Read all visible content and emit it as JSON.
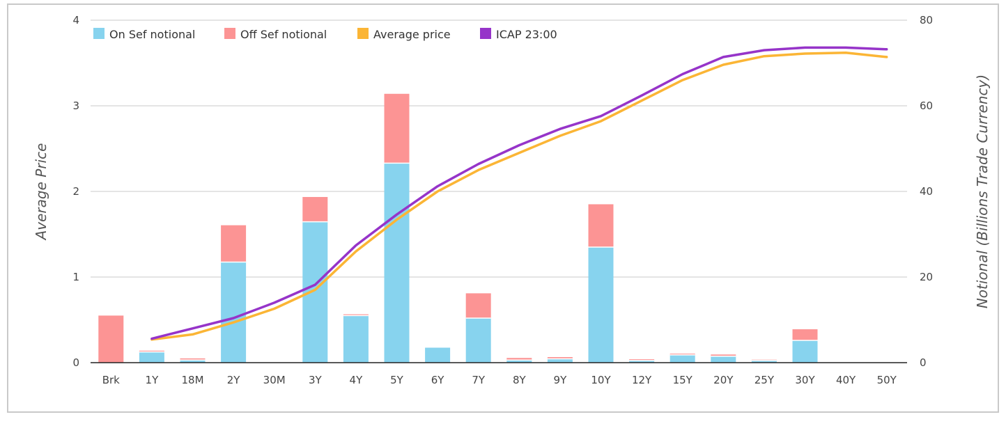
{
  "chart_data": {
    "type": "bar",
    "categories": [
      "Brk",
      "1Y",
      "18M",
      "2Y",
      "30M",
      "3Y",
      "4Y",
      "5Y",
      "6Y",
      "7Y",
      "8Y",
      "9Y",
      "10Y",
      "12Y",
      "15Y",
      "20Y",
      "25Y",
      "30Y",
      "40Y",
      "50Y"
    ],
    "ylabel": "Average Price",
    "y2label": "Notional (Billions Trade Currency)",
    "ylim": [
      0,
      4
    ],
    "y2lim": [
      0,
      80
    ],
    "yticks": [
      0,
      1,
      2,
      3,
      4
    ],
    "y2ticks": [
      0,
      20,
      40,
      60,
      80
    ],
    "grid": true,
    "legend_position": "top-left",
    "bar_series": [
      {
        "name": "On Sef notional",
        "color": "#87d3ee",
        "axis": "right",
        "values": [
          0,
          2.5,
          0.6,
          23.5,
          0,
          32.9,
          11,
          46.6,
          3.5,
          10.4,
          0.6,
          0.9,
          27,
          0.5,
          1.8,
          1.5,
          0.5,
          5.2,
          0,
          0
        ]
      },
      {
        "name": "Off Sef notional",
        "color": "#fc9494",
        "axis": "right",
        "values": [
          11,
          0.3,
          0.4,
          8.6,
          0,
          5.8,
          0.3,
          16.2,
          0,
          5.8,
          0.5,
          0.4,
          10,
          0.3,
          0.3,
          0.4,
          0.2,
          2.6,
          0,
          0
        ]
      }
    ],
    "line_series": [
      {
        "name": "Average price",
        "color": "#fbb535",
        "axis": "left",
        "values": [
          null,
          0.27,
          0.33,
          0.47,
          0.63,
          0.85,
          1.3,
          1.67,
          2.0,
          2.25,
          2.45,
          2.65,
          2.82,
          3.06,
          3.3,
          3.48,
          3.58,
          3.61,
          3.62,
          3.57
        ]
      },
      {
        "name": "ICAP 23:00",
        "color": "#9634c9",
        "axis": "left",
        "values": [
          null,
          0.28,
          0.4,
          0.52,
          0.7,
          0.91,
          1.37,
          1.73,
          2.06,
          2.32,
          2.54,
          2.73,
          2.88,
          3.12,
          3.37,
          3.57,
          3.65,
          3.68,
          3.68,
          3.66
        ]
      }
    ]
  }
}
